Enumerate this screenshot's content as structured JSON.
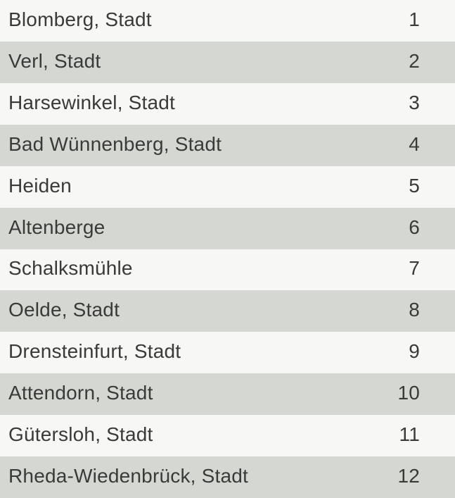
{
  "table": {
    "rows": [
      {
        "name": "Blomberg, Stadt",
        "rank": "1"
      },
      {
        "name": "Verl, Stadt",
        "rank": "2"
      },
      {
        "name": "Harsewinkel, Stadt",
        "rank": "3"
      },
      {
        "name": "Bad Wünnenberg, Stadt",
        "rank": "4"
      },
      {
        "name": "Heiden",
        "rank": "5"
      },
      {
        "name": "Altenberge",
        "rank": "6"
      },
      {
        "name": "Schalksmühle",
        "rank": "7"
      },
      {
        "name": "Oelde, Stadt",
        "rank": "8"
      },
      {
        "name": "Drensteinfurt, Stadt",
        "rank": "9"
      },
      {
        "name": "Attendorn, Stadt",
        "rank": "10"
      },
      {
        "name": "Gütersloh, Stadt",
        "rank": "11"
      },
      {
        "name": "Rheda-Wiedenbrück, Stadt",
        "rank": "12"
      }
    ]
  },
  "colors": {
    "row_odd_bg": "#f7f7f5",
    "row_even_bg": "#d5d8d2",
    "text": "#3a3a39"
  },
  "chart_data": {
    "type": "table",
    "rows": [
      [
        "Blomberg, Stadt",
        1
      ],
      [
        "Verl, Stadt",
        2
      ],
      [
        "Harsewinkel, Stadt",
        3
      ],
      [
        "Bad Wünnenberg, Stadt",
        4
      ],
      [
        "Heiden",
        5
      ],
      [
        "Altenberge",
        6
      ],
      [
        "Schalksmühle",
        7
      ],
      [
        "Oelde, Stadt",
        8
      ],
      [
        "Drensteinfurt, Stadt",
        9
      ],
      [
        "Attendorn, Stadt",
        10
      ],
      [
        "Gütersloh, Stadt",
        11
      ],
      [
        "Rheda-Wiedenbrück, Stadt",
        12
      ]
    ]
  }
}
